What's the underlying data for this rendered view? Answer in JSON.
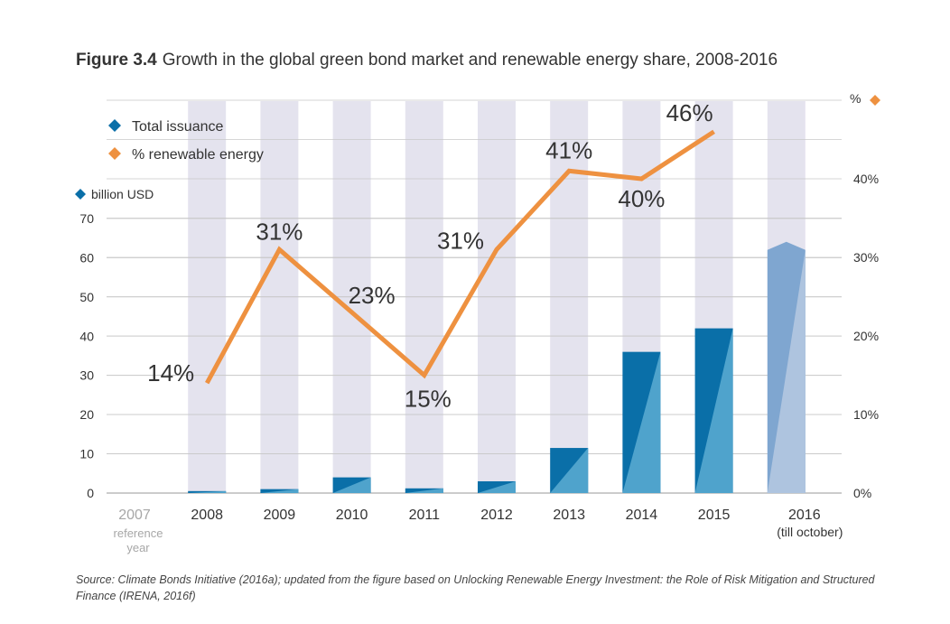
{
  "figure": {
    "number": "Figure 3.4",
    "title": "Growth in the global green bond market and renewable energy share, 2008-2016",
    "source": "Source: Climate Bonds Initiative (2016a); updated from the figure based on Unlocking Renewable Energy Investment: the Role of Risk Mitigation and Structured Finance (IRENA, 2016f)"
  },
  "chart_data": {
    "type": "bar",
    "categories": [
      "2007",
      "2008",
      "2009",
      "2010",
      "2011",
      "2012",
      "2013",
      "2014",
      "2015",
      "2016"
    ],
    "category_sublabels": [
      "reference year",
      "",
      "",
      "",
      "",
      "",
      "",
      "",
      "",
      "(till october)"
    ],
    "series": [
      {
        "name": "Total issuance",
        "axis": "left",
        "values": [
          null,
          0.5,
          1,
          4,
          1.2,
          3,
          11.5,
          36,
          42,
          62
        ],
        "highlight": [
          false,
          false,
          false,
          false,
          false,
          false,
          false,
          false,
          false,
          true
        ]
      },
      {
        "name": "% renewable energy",
        "type": "line",
        "axis": "right",
        "values": [
          null,
          14,
          31,
          23,
          15,
          31,
          41,
          40,
          46,
          null
        ],
        "labels": [
          "",
          "14%",
          "31%",
          "23%",
          "15%",
          "31%",
          "41%",
          "40%",
          "46%",
          ""
        ]
      }
    ],
    "y_left": {
      "label": "billion USD",
      "ylim": [
        0,
        70
      ],
      "ticks": [
        "0",
        "10",
        "20",
        "30",
        "40",
        "50",
        "60",
        "70"
      ]
    },
    "y_right": {
      "label": "%",
      "ylim": [
        0,
        50
      ],
      "ticks": [
        "0%",
        "10%",
        "20%",
        "30%",
        "40%"
      ]
    },
    "legend": [
      "Total issuance",
      "% renewable energy"
    ],
    "legend_position": "top-left",
    "grid": true,
    "colors": {
      "bar_dark": "#0a6fa8",
      "bar_light": "#4fa3cc",
      "bar_2016_dark": "#7fa6d0",
      "bar_2016_light": "#aec4df",
      "column_band": "#e4e3ee",
      "line": "#ee9140",
      "grid": "#c9c9c9",
      "axis_text": "#333333",
      "reference_year_text": "#a7a7a7"
    }
  }
}
